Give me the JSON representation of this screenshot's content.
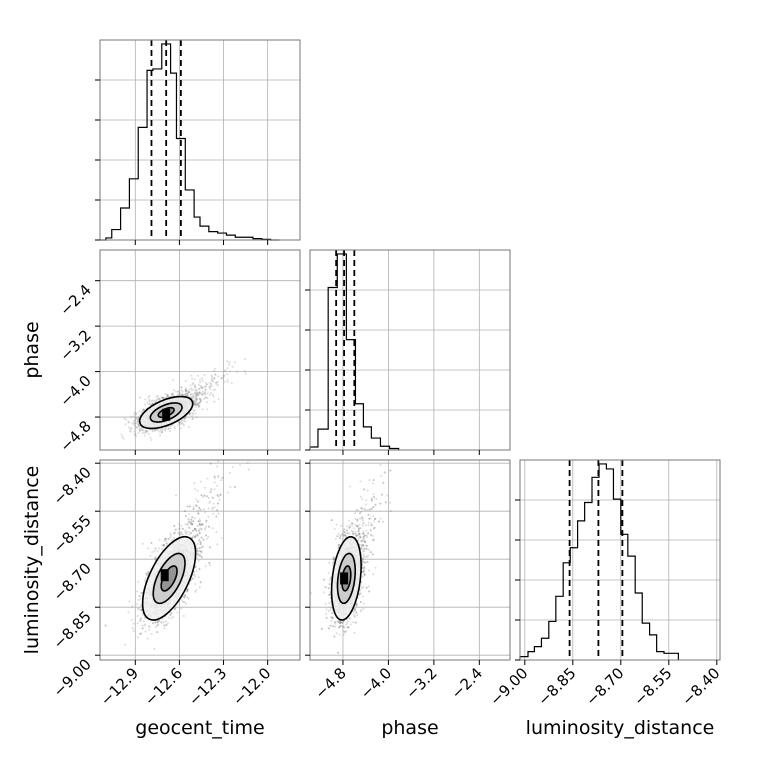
{
  "chart_data": {
    "type": "corner",
    "title": "",
    "parameters": [
      "geocent_time",
      "phase",
      "luminosity_distance"
    ],
    "axis_labels": {
      "x": [
        "geocent_time",
        "phase",
        "luminosity_distance"
      ],
      "y": [
        "phase",
        "luminosity_distance"
      ]
    },
    "ranges": {
      "geocent_time": [
        -13.14,
        -11.78
      ],
      "phase": [
        -5.38,
        -1.86
      ],
      "luminosity_distance": [
        -9.015,
        -8.39
      ]
    },
    "ticks": {
      "geocent_time": [
        -12.9,
        -12.6,
        -12.3,
        -12.0
      ],
      "phase": [
        -4.8,
        -4.0,
        -3.2,
        -2.4
      ],
      "luminosity_distance": [
        -9.0,
        -8.85,
        -8.7,
        -8.55,
        -8.4
      ]
    },
    "tick_labels": {
      "geocent_time": [
        "−12.9",
        "−12.6",
        "−12.3",
        "−12.0"
      ],
      "phase": [
        "−4.8",
        "−4.0",
        "−3.2",
        "−2.4"
      ],
      "luminosity_distance": [
        "−9.00",
        "−8.85",
        "−8.70",
        "−8.55",
        "−8.40"
      ]
    },
    "quantiles": {
      "geocent_time": [
        -12.79,
        -12.69,
        -12.59
      ],
      "phase": [
        -4.92,
        -4.78,
        -4.6
      ],
      "luminosity_distance": [
        -8.86,
        -8.77,
        -8.695
      ]
    },
    "histograms": {
      "geocent_time": {
        "edges": [
          -13.14,
          -13.1,
          -13.06,
          -13.0,
          -12.94,
          -12.88,
          -12.82,
          -12.78,
          -12.72,
          -12.66,
          -12.62,
          -12.56,
          -12.5,
          -12.46,
          -12.4,
          -12.34,
          -12.28,
          -12.22,
          -12.16,
          -12.1,
          -12.04,
          -11.98,
          -11.92
        ],
        "counts": [
          0,
          3,
          15,
          46,
          88,
          162,
          244,
          246,
          282,
          240,
          146,
          72,
          33,
          20,
          12,
          10,
          7,
          4,
          4,
          2,
          1,
          0
        ]
      },
      "phase": {
        "edges": [
          -5.38,
          -5.24,
          -5.06,
          -4.9,
          -4.74,
          -4.58,
          -4.44,
          -4.3,
          -4.14,
          -3.98,
          -3.82
        ],
        "counts": [
          4,
          28,
          218,
          263,
          148,
          62,
          31,
          16,
          5,
          2
        ]
      },
      "luminosity_distance": {
        "edges": [
          -9.015,
          -8.99,
          -8.97,
          -8.948,
          -8.925,
          -8.903,
          -8.88,
          -8.858,
          -8.835,
          -8.813,
          -8.79,
          -8.768,
          -8.745,
          -8.723,
          -8.7,
          -8.678,
          -8.655,
          -8.633,
          -8.61,
          -8.588,
          -8.565,
          -8.543,
          -8.52
        ],
        "counts": [
          2,
          5,
          8,
          13,
          23,
          38,
          58,
          67,
          83,
          94,
          109,
          117,
          114,
          96,
          75,
          62,
          40,
          22,
          15,
          5,
          4,
          4
        ]
      }
    },
    "pairs": [
      {
        "x": "geocent_time",
        "y": "phase",
        "mean": [
          -12.69,
          -4.72
        ],
        "sd": [
          0.09,
          0.14
        ],
        "rho": 0.55,
        "peak": [
          -12.69,
          -4.76
        ]
      },
      {
        "x": "geocent_time",
        "y": "luminosity_distance",
        "mean": [
          -12.67,
          -8.76
        ],
        "sd": [
          0.09,
          0.065
        ],
        "rho": 0.6,
        "peak": [
          -12.7,
          -8.75
        ]
      },
      {
        "x": "phase",
        "y": "luminosity_distance",
        "mean": [
          -4.74,
          -8.76
        ],
        "sd": [
          0.13,
          0.065
        ],
        "rho": 0.3,
        "peak": [
          -4.78,
          -8.76
        ]
      }
    ],
    "contour_levels": 3,
    "grid": true,
    "colors": {
      "samples": "#808080",
      "contours": "#000000",
      "quantiles": "#000000",
      "grid": "#b0b0b0"
    }
  }
}
